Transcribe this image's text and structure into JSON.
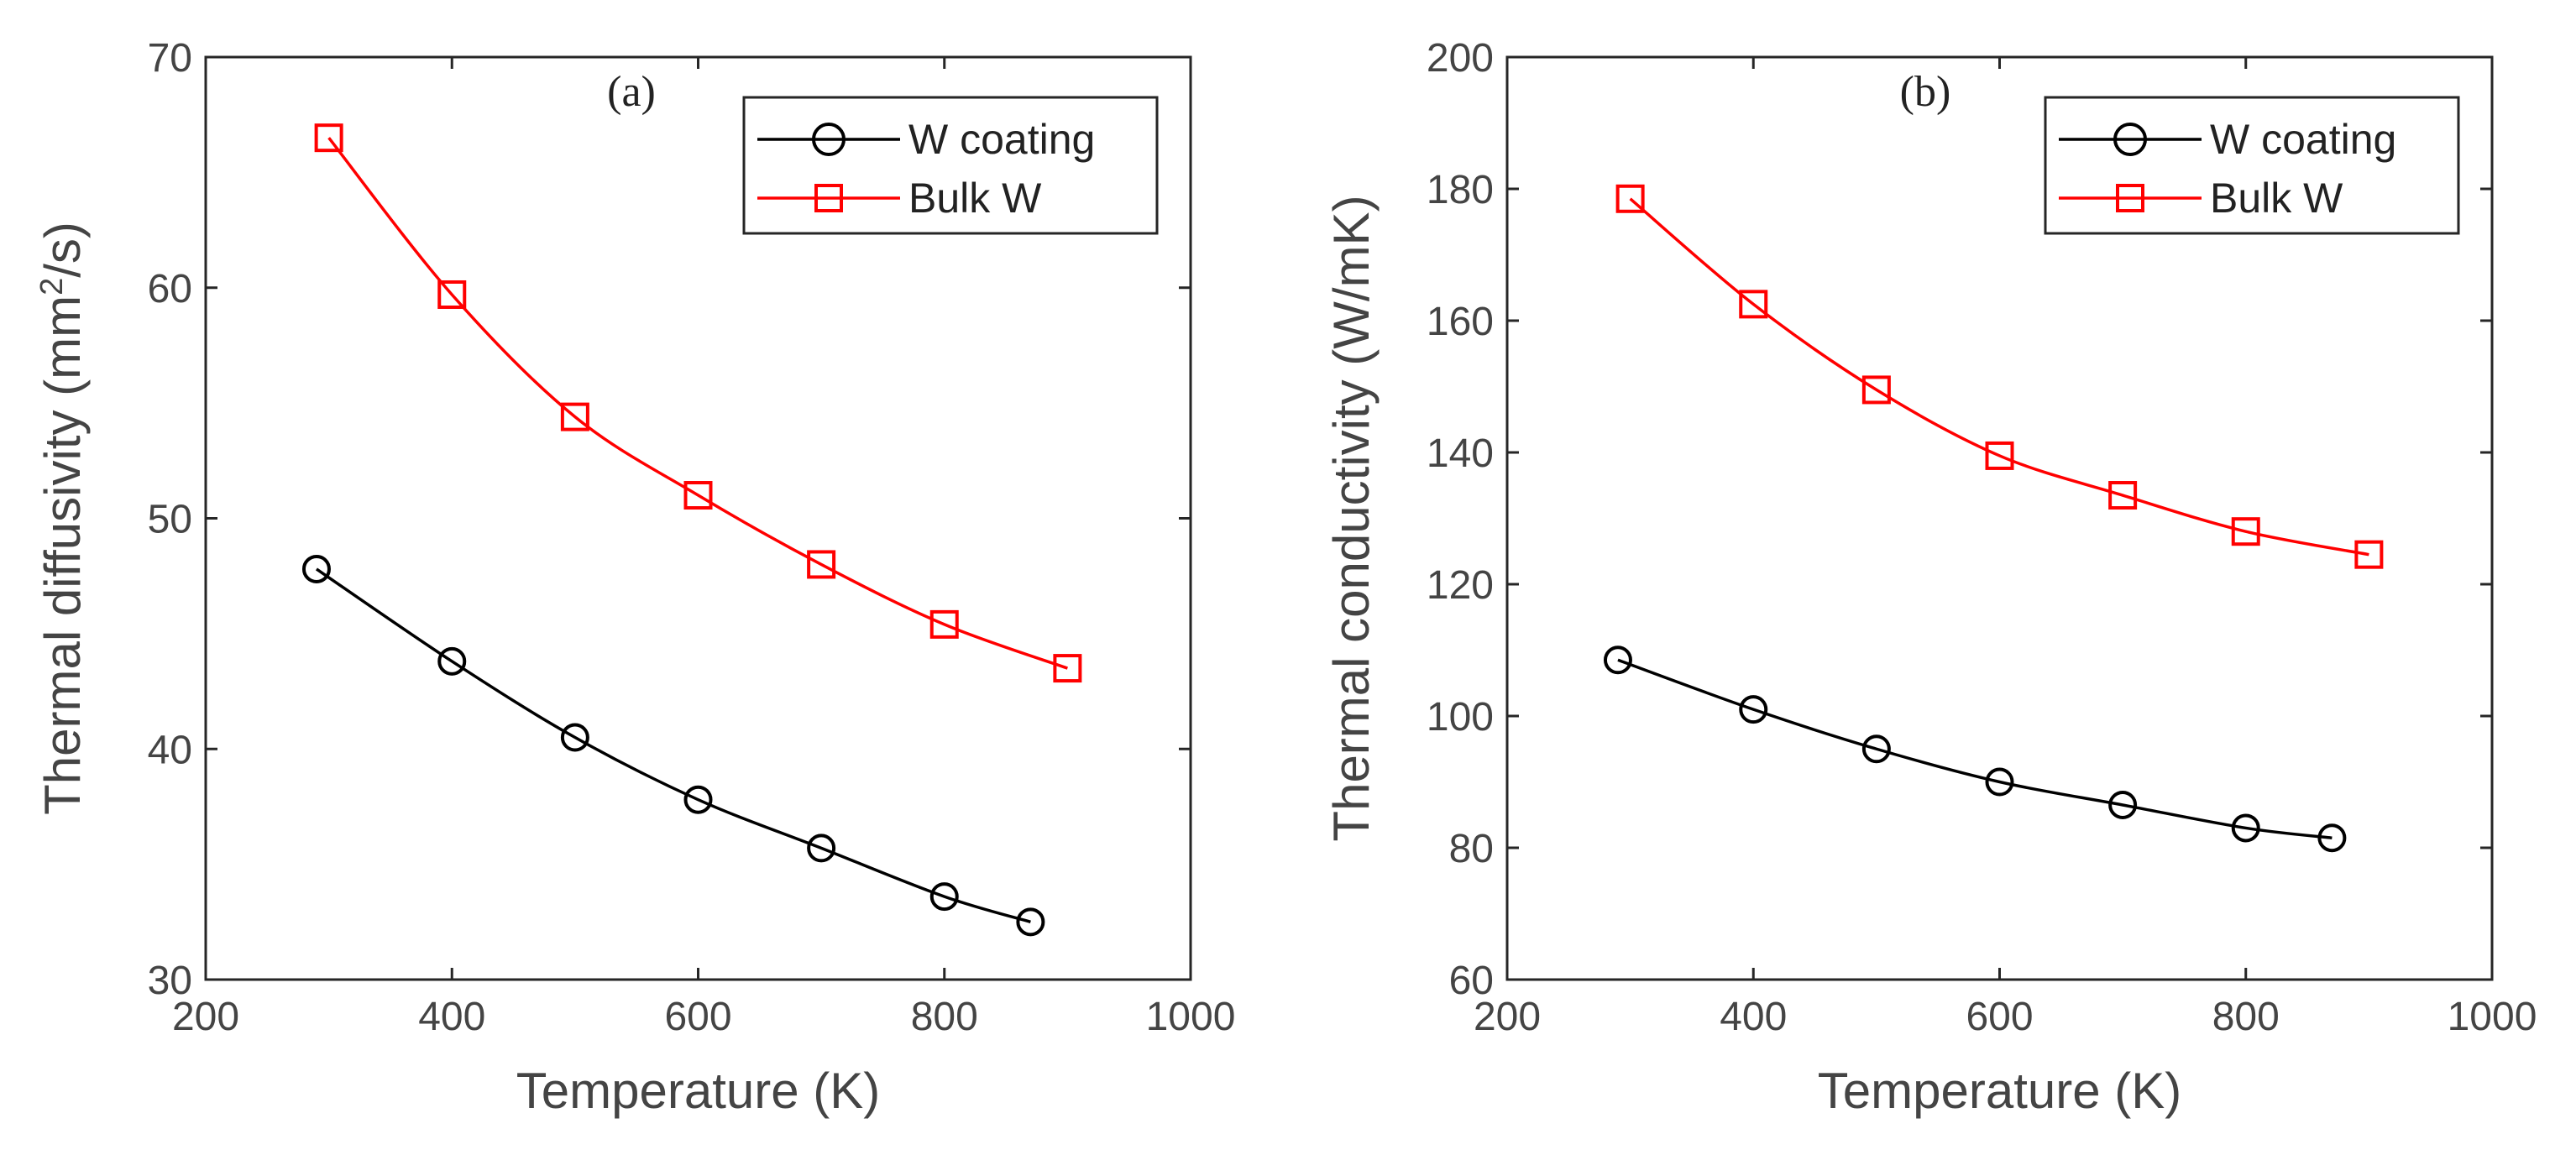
{
  "chart_data": [
    {
      "type": "line",
      "panel_label": "(a)",
      "title": "",
      "xlabel": "Temperature (K)",
      "ylabel": "Thermal diffusivity (mm",
      "ylabel_sup": "2",
      "ylabel_tail": "/s)",
      "xlim": [
        200,
        1000
      ],
      "ylim": [
        30,
        70
      ],
      "xticks": [
        200,
        400,
        600,
        800,
        1000
      ],
      "yticks": [
        30,
        40,
        50,
        60,
        70
      ],
      "xtick_labels": [
        "200",
        "400",
        "600",
        "800",
        "1000"
      ],
      "ytick_labels": [
        "30",
        "40",
        "50",
        "60",
        "70"
      ],
      "grid": false,
      "legend_position": "top-right",
      "series": [
        {
          "name": "W coating",
          "marker": "circle",
          "color": "#000000",
          "x": [
            290,
            400,
            500,
            600,
            700,
            800,
            870
          ],
          "y": [
            47.8,
            43.8,
            40.5,
            37.8,
            35.7,
            33.6,
            32.5
          ]
        },
        {
          "name": "Bulk W",
          "marker": "square",
          "color": "#ff0000",
          "x": [
            300,
            400,
            500,
            600,
            700,
            800,
            900
          ],
          "y": [
            66.5,
            59.7,
            54.4,
            51.0,
            48.0,
            45.4,
            43.5
          ]
        }
      ]
    },
    {
      "type": "line",
      "panel_label": "(b)",
      "title": "",
      "xlabel": "Temperature (K)",
      "ylabel": "Thermal conductivity (W/mK)",
      "ylabel_sup": "",
      "ylabel_tail": "",
      "xlim": [
        200,
        1000
      ],
      "ylim": [
        60,
        200
      ],
      "xticks": [
        200,
        400,
        600,
        800,
        1000
      ],
      "yticks": [
        60,
        80,
        100,
        120,
        140,
        160,
        180,
        200
      ],
      "xtick_labels": [
        "200",
        "400",
        "600",
        "800",
        "1000"
      ],
      "ytick_labels": [
        "60",
        "80",
        "100",
        "120",
        "140",
        "160",
        "180",
        "200"
      ],
      "grid": false,
      "legend_position": "top-right",
      "series": [
        {
          "name": "W coating",
          "marker": "circle",
          "color": "#000000",
          "x": [
            290,
            400,
            500,
            600,
            700,
            800,
            870
          ],
          "y": [
            108.5,
            101.0,
            95.0,
            90.0,
            86.5,
            83.0,
            81.5
          ]
        },
        {
          "name": "Bulk W",
          "marker": "square",
          "color": "#ff0000",
          "x": [
            300,
            400,
            500,
            600,
            700,
            800,
            900
          ],
          "y": [
            178.5,
            162.5,
            149.5,
            139.5,
            133.5,
            128.0,
            124.5
          ]
        }
      ]
    }
  ]
}
